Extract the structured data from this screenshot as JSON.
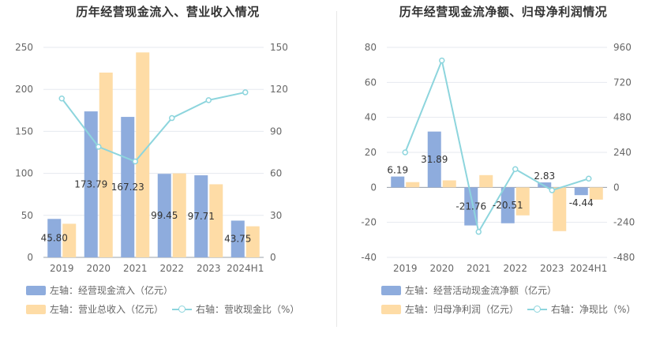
{
  "chart_data": [
    {
      "type": "bar",
      "title": "历年经营现金流入、营业收入情况",
      "categories": [
        "2019",
        "2020",
        "2021",
        "2022",
        "2023",
        "2024H1"
      ],
      "y_left": {
        "ticks": [
          "0",
          "50",
          "100",
          "150",
          "200",
          "250"
        ],
        "ylim": [
          0,
          250
        ]
      },
      "y_right": {
        "ticks": [
          "0",
          "30",
          "60",
          "90",
          "120",
          "150"
        ],
        "ylim": [
          0,
          150
        ]
      },
      "grid": true,
      "legend_position": "bottom-left",
      "series": [
        {
          "name": "左轴：经营现金流入（亿元）",
          "kind": "bar",
          "axis": "left",
          "color": "#8eacdd",
          "values": [
            45.8,
            173.79,
            167.23,
            99.45,
            97.71,
            43.75
          ],
          "labels": [
            "45.80",
            "173.79",
            "167.23",
            "99.45",
            "97.71",
            "43.75"
          ]
        },
        {
          "name": "左轴：营业总收入（亿元）",
          "kind": "bar",
          "axis": "left",
          "color": "#fedca6",
          "values": [
            40,
            220,
            244,
            100,
            87,
            37
          ]
        },
        {
          "name": "右轴：营收现金比（%）",
          "kind": "line",
          "axis": "right",
          "color": "#8dd5dd",
          "values": [
            113.5,
            79.0,
            68.5,
            99.5,
            112.3,
            117.9
          ]
        }
      ]
    },
    {
      "type": "bar",
      "title": "历年经营现金流净额、归母净利润情况",
      "categories": [
        "2019",
        "2020",
        "2021",
        "2022",
        "2023",
        "2024H1"
      ],
      "y_left": {
        "ticks": [
          "-40",
          "-20",
          "0",
          "20",
          "40",
          "60",
          "80"
        ],
        "ylim": [
          -40,
          80
        ]
      },
      "y_right": {
        "ticks": [
          "-480",
          "-240",
          "0",
          "240",
          "480",
          "720",
          "960"
        ],
        "ylim": [
          -480,
          960
        ]
      },
      "grid": true,
      "legend_position": "bottom-left",
      "series": [
        {
          "name": "左轴：经营活动现金流净额（亿元）",
          "kind": "bar",
          "axis": "left",
          "color": "#8eacdd",
          "values": [
            6.19,
            31.89,
            -21.76,
            -20.51,
            2.83,
            -4.44
          ],
          "labels": [
            "6.19",
            "31.89",
            "-21.76",
            "-20.51",
            "2.83",
            "-4.44"
          ]
        },
        {
          "name": "左轴：归母净利润（亿元）",
          "kind": "bar",
          "axis": "left",
          "color": "#fedca6",
          "values": [
            3,
            4,
            7,
            -16,
            -25,
            -7
          ]
        },
        {
          "name": "右轴：净现比（%）",
          "kind": "line",
          "axis": "right",
          "color": "#8dd5dd",
          "values": [
            240,
            870,
            -305,
            125,
            -20,
            60
          ]
        }
      ]
    }
  ]
}
